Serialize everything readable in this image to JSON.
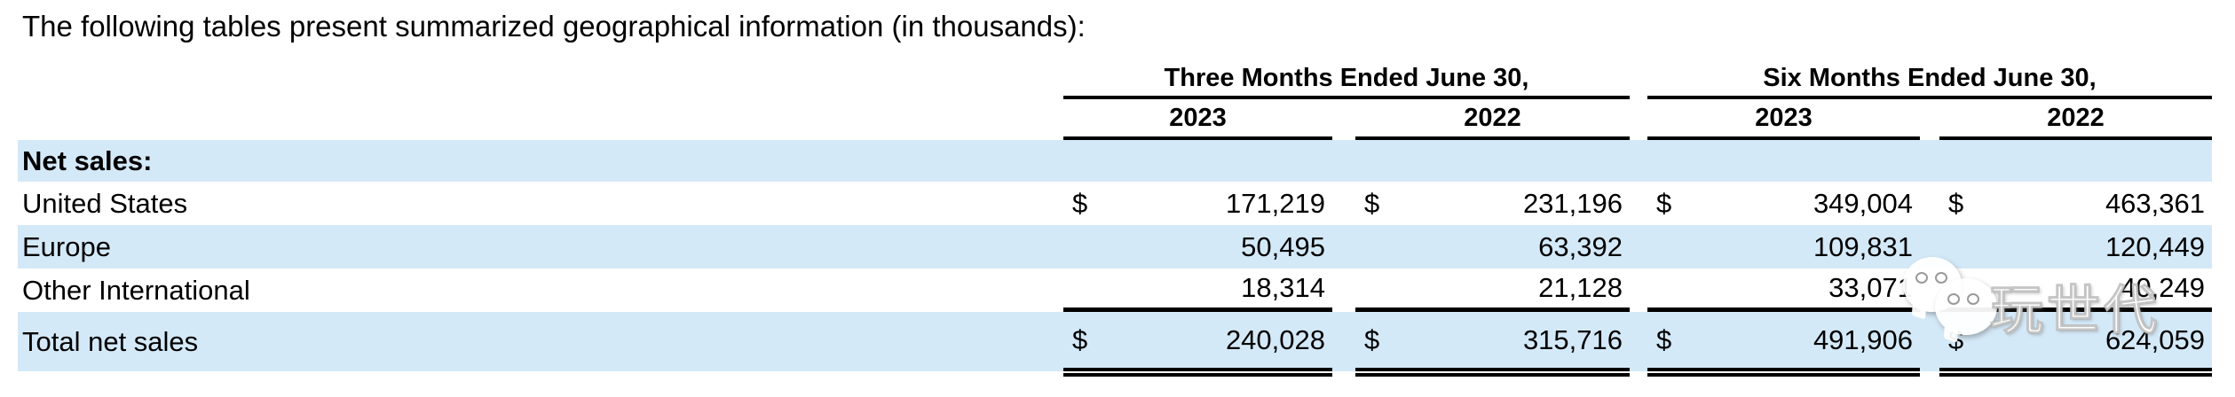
{
  "title": "The following tables present summarized geographical information (in thousands):",
  "table": {
    "currency_symbol": "$",
    "col_groups": [
      {
        "label": "Three Months Ended June 30,",
        "years": [
          "2023",
          "2022"
        ]
      },
      {
        "label": "Six Months Ended June 30,",
        "years": [
          "2023",
          "2022"
        ]
      }
    ],
    "section_header": "Net sales:",
    "rows": [
      {
        "label": "United States",
        "values": [
          "171,219",
          "231,196",
          "349,004",
          "463,361"
        ]
      },
      {
        "label": "Europe",
        "values": [
          "50,495",
          "63,392",
          "109,831",
          "120,449"
        ]
      },
      {
        "label": "Other International",
        "values": [
          "18,314",
          "21,128",
          "33,071",
          "40,249"
        ]
      },
      {
        "label": "Total net sales",
        "values": [
          "240,028",
          "315,716",
          "491,906",
          "624,059"
        ]
      }
    ]
  },
  "watermark": {
    "text": "玩世代",
    "icon": "wechat-icon"
  },
  "colors": {
    "row_highlight": "#d4e9f8",
    "rule": "#000000",
    "text": "#000000",
    "watermark": "#ffffff"
  }
}
